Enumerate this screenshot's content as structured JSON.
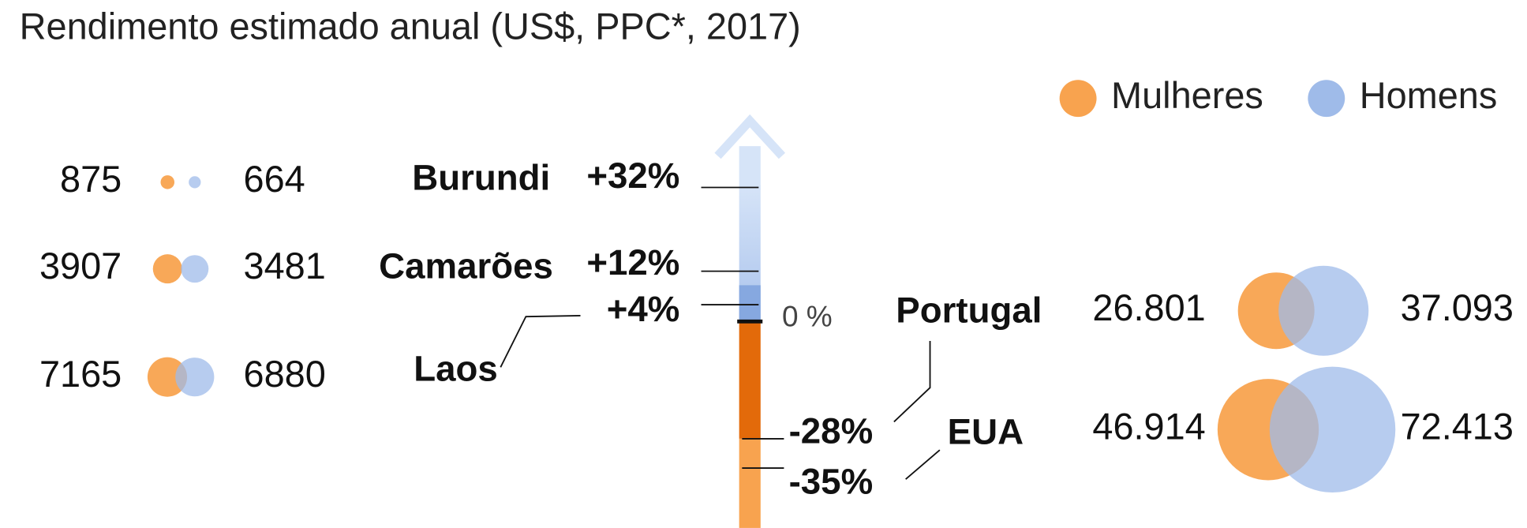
{
  "title": "Rendimento estimado anual  (US$, PPC*, 2017)",
  "legend": [
    {
      "name": "Mulheres",
      "color": "#f8a34f"
    },
    {
      "name": "Homens",
      "color": "#9fbbe9"
    }
  ],
  "zero_label": "0 %",
  "countries": [
    {
      "name": "Burundi",
      "change": 32,
      "change_label": "+32%",
      "women": 875,
      "men": 664
    },
    {
      "name": "Camarões",
      "change": 12,
      "change_label": "+12%",
      "women": 3907,
      "men": 3481
    },
    {
      "name": "Laos",
      "change": 4,
      "change_label": "+4%",
      "women": 7165,
      "men": 6880
    },
    {
      "name": "Portugal",
      "change": -28,
      "change_label": "-28%",
      "women": 26801,
      "women_label": "26.801",
      "men": 37093,
      "men_label": "37.093"
    },
    {
      "name": "EUA",
      "change": -35,
      "change_label": "-35%",
      "women": 46914,
      "women_label": "46.914",
      "men": 72413,
      "men_label": "72.413"
    }
  ]
}
